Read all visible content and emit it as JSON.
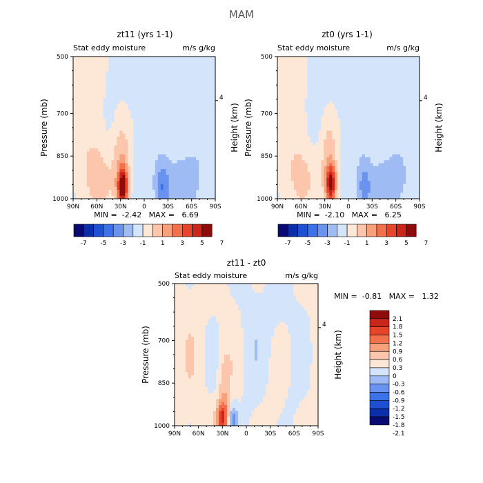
{
  "figure": {
    "title": "MAM"
  },
  "palettes": {
    "main": [
      "#0a0a73",
      "#0b2fa8",
      "#1f50d4",
      "#3c71e8",
      "#6a93ef",
      "#9fbbf4",
      "#d4e5fb",
      "#fde8d8",
      "#fbc6ab",
      "#f7a07c",
      "#f2714c",
      "#e6452c",
      "#c9271b",
      "#8f0c0c"
    ],
    "diff": [
      "#0a0a73",
      "#0b2fa8",
      "#1f50d4",
      "#3c71e8",
      "#6a93ef",
      "#9fbbf4",
      "#d4e5fb",
      "#fde8d8",
      "#fbc6ab",
      "#f7a07c",
      "#f2714c",
      "#e6452c",
      "#c9271b",
      "#8f0c0c"
    ]
  },
  "chart_data": [
    {
      "type": "heatmap",
      "id": "p1",
      "title": "zt11 (yrs 1-1)",
      "left_label": "Stat eddy moisture",
      "right_label": "m/s g/kg",
      "ylabel": "Pressure (mb)",
      "y2label": "Height (km)",
      "xticks": [
        "90N",
        "60N",
        "30N",
        "0",
        "30S",
        "60S",
        "90S"
      ],
      "xlim": [
        90,
        -90
      ],
      "yticks": [
        500,
        700,
        850,
        1000
      ],
      "ylim": [
        500,
        1000
      ],
      "y2ticks": [
        "4"
      ],
      "min_max_text": "MIN =  -2.42   MAX =   6.69",
      "colorbar_labels": [
        "-7",
        "-5",
        "-3",
        "-1",
        "1",
        "3",
        "5",
        "7"
      ],
      "field": {
        "background": -0.5,
        "blobs": [
          {
            "lat": 27,
            "p": 960,
            "slat": 4.5,
            "sp": 45,
            "amp": 6.7
          },
          {
            "lat": 29,
            "p": 870,
            "slat": 8,
            "sp": 110,
            "amp": 2.2
          },
          {
            "lat": 58,
            "p": 940,
            "slat": 14,
            "sp": 90,
            "amp": 1.8
          },
          {
            "lat": 75,
            "p": 640,
            "slat": 24,
            "sp": 240,
            "amp": 1.0
          },
          {
            "lat": -23,
            "p": 960,
            "slat": 6,
            "sp": 55,
            "amp": -2.2
          },
          {
            "lat": -48,
            "p": 950,
            "slat": 18,
            "sp": 90,
            "amp": -1.0
          }
        ]
      }
    },
    {
      "type": "heatmap",
      "id": "p2",
      "title": "zt0 (yrs 1-1)",
      "left_label": "Stat eddy moisture",
      "right_label": "m/s g/kg",
      "ylabel": "Pressure (mb)",
      "y2label": "Height (km)",
      "xticks": [
        "90N",
        "60N",
        "30N",
        "0",
        "30S",
        "60S",
        "90S"
      ],
      "xlim": [
        90,
        -90
      ],
      "yticks": [
        500,
        700,
        850,
        1000
      ],
      "ylim": [
        500,
        1000
      ],
      "y2ticks": [
        "4"
      ],
      "min_max_text": "MIN =  -2.10   MAX =   6.25",
      "colorbar_labels": [
        "-7",
        "-5",
        "-3",
        "-1",
        "1",
        "3",
        "5",
        "7"
      ],
      "field": {
        "background": -0.5,
        "blobs": [
          {
            "lat": 22,
            "p": 950,
            "slat": 4.5,
            "sp": 45,
            "amp": 6.2
          },
          {
            "lat": 25,
            "p": 860,
            "slat": 8,
            "sp": 110,
            "amp": 2.0
          },
          {
            "lat": 58,
            "p": 940,
            "slat": 14,
            "sp": 90,
            "amp": 1.6
          },
          {
            "lat": 78,
            "p": 640,
            "slat": 22,
            "sp": 240,
            "amp": 1.0
          },
          {
            "lat": -20,
            "p": 960,
            "slat": 6,
            "sp": 55,
            "amp": -1.9
          },
          {
            "lat": -50,
            "p": 950,
            "slat": 18,
            "sp": 90,
            "amp": -1.0
          }
        ]
      }
    },
    {
      "type": "heatmap",
      "id": "p3",
      "title": "zt11 - zt0",
      "left_label": "Stat eddy moisture",
      "right_label": "m/s g/kg",
      "ylabel": "Pressure (mb)",
      "y2label": "Height (km)",
      "xticks": [
        "90N",
        "60N",
        "30N",
        "0",
        "30S",
        "60S",
        "90S"
      ],
      "xlim": [
        90,
        -90
      ],
      "yticks": [
        500,
        700,
        850,
        1000
      ],
      "ylim": [
        500,
        1000
      ],
      "y2ticks": [
        "4"
      ],
      "min_max_text": "MIN =  -0.81   MAX =   1.32",
      "colorbar_labels": [
        "2.1",
        "1.8",
        "1.5",
        "1.2",
        "0.9",
        "0.6",
        "0.3",
        "0",
        "-0.3",
        "-0.6",
        "-0.9",
        "-1.2",
        "-1.5",
        "-1.8",
        "-2.1"
      ],
      "field": {
        "background": 0.1,
        "blobs": [
          {
            "lat": 30,
            "p": 975,
            "slat": 5,
            "sp": 40,
            "amp": 1.3
          },
          {
            "lat": 28,
            "p": 880,
            "slat": 5,
            "sp": 90,
            "amp": 0.45
          },
          {
            "lat": 17,
            "p": 980,
            "slat": 4,
            "sp": 40,
            "amp": -0.8
          },
          {
            "lat": 0,
            "p": 700,
            "slat": 12,
            "sp": 300,
            "amp": -0.2
          },
          {
            "lat": -40,
            "p": 600,
            "slat": 18,
            "sp": 150,
            "amp": -0.25
          },
          {
            "lat": -55,
            "p": 930,
            "slat": 8,
            "sp": 80,
            "amp": -0.15
          }
        ]
      }
    }
  ]
}
